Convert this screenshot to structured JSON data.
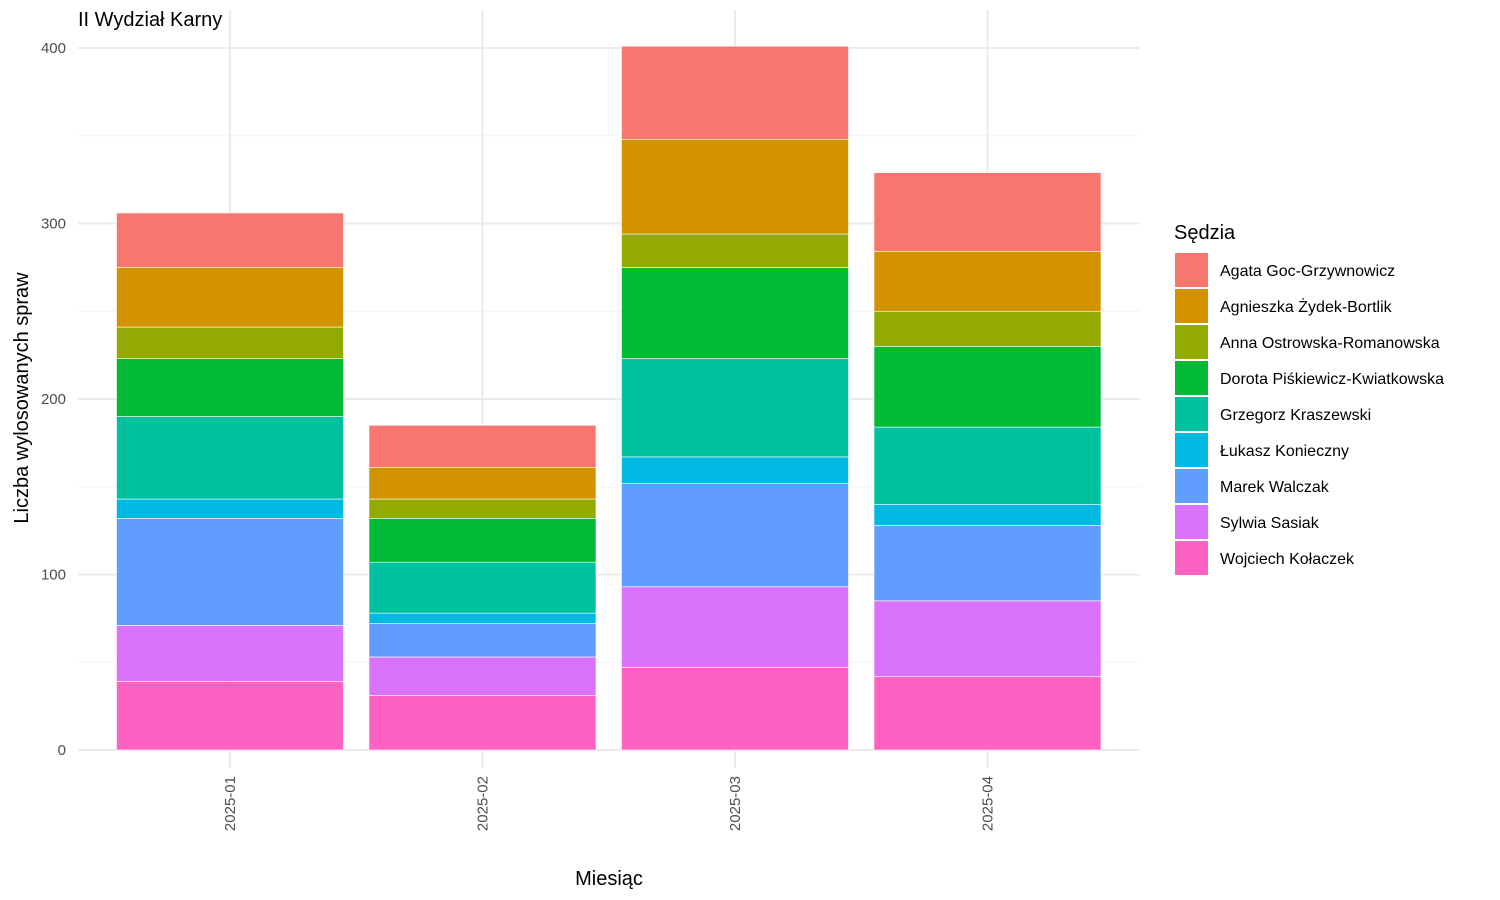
{
  "chart_data": {
    "type": "bar",
    "stacked": true,
    "title": "II Wydział Karny",
    "xlabel": "Miesiąc",
    "ylabel": "Liczba wylosowanych spraw",
    "categories": [
      "2025-01",
      "2025-02",
      "2025-03",
      "2025-04"
    ],
    "ylim": [
      0,
      400
    ],
    "yticks": [
      0,
      100,
      200,
      300,
      400
    ],
    "grid": true,
    "legend": {
      "title": "Sędzia",
      "position": "right"
    },
    "series": [
      {
        "name": "Agata Goc-Grzywnowicz",
        "color": "#F8766D",
        "values": [
          31,
          24,
          53,
          45
        ]
      },
      {
        "name": "Agnieszka Żydek-Bortlik",
        "color": "#D39200",
        "values": [
          34,
          18,
          54,
          34
        ]
      },
      {
        "name": "Anna Ostrowska-Romanowska",
        "color": "#93AA00",
        "values": [
          18,
          11,
          19,
          20
        ]
      },
      {
        "name": "Dorota Piśkiewicz-Kwiatkowska",
        "color": "#00BA38",
        "values": [
          33,
          25,
          52,
          46
        ]
      },
      {
        "name": "Grzegorz Kraszewski",
        "color": "#00C19F",
        "values": [
          47,
          29,
          56,
          44
        ]
      },
      {
        "name": "Łukasz Konieczny",
        "color": "#00B9E3",
        "values": [
          11,
          6,
          15,
          12
        ]
      },
      {
        "name": "Marek Walczak",
        "color": "#619CFF",
        "values": [
          61,
          19,
          59,
          43
        ]
      },
      {
        "name": "Sylwia Sasiak",
        "color": "#DB72FB",
        "values": [
          32,
          22,
          46,
          43
        ]
      },
      {
        "name": "Wojciech Kołaczek",
        "color": "#FF61C3",
        "values": [
          39,
          31,
          47,
          42
        ]
      }
    ]
  }
}
